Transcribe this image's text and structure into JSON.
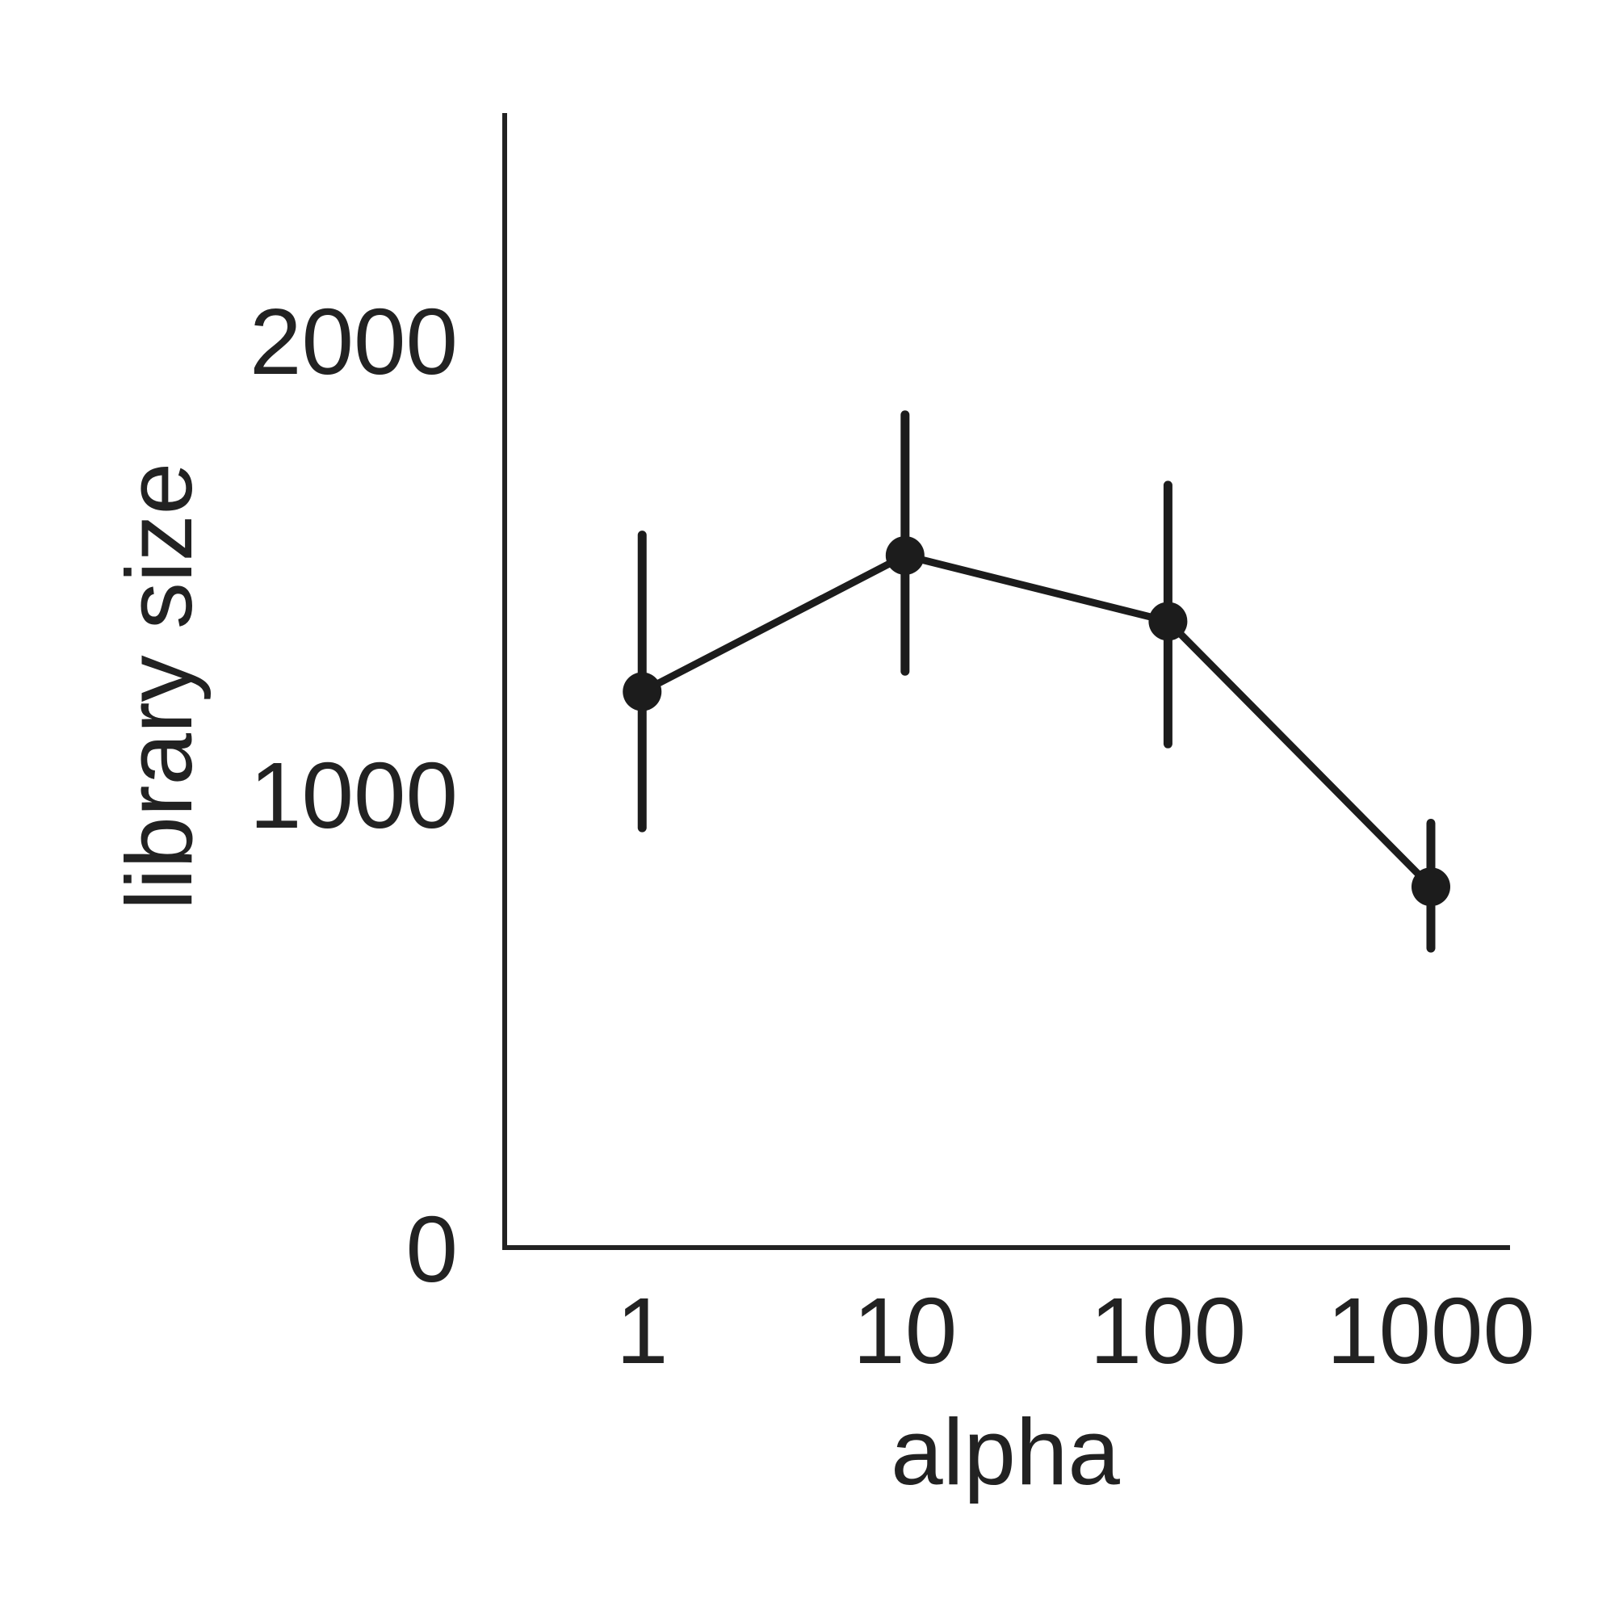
{
  "chart_data": {
    "type": "line",
    "title": "",
    "xlabel": "alpha",
    "ylabel": "library size",
    "x_scale": "log",
    "categories": [
      "1",
      "10",
      "100",
      "1000"
    ],
    "x": [
      1,
      10,
      100,
      1000
    ],
    "xlim": [
      0.3,
      2000
    ],
    "ylim": [
      0,
      2500
    ],
    "yticks": [
      0,
      1000,
      2000
    ],
    "ytick_labels": [
      "0",
      "1000",
      "2000"
    ],
    "series": [
      {
        "values": [
          1225,
          1525,
          1380,
          795
        ],
        "err_low": [
          925,
          1270,
          1110,
          660
        ],
        "err_high": [
          1570,
          1835,
          1680,
          935
        ]
      }
    ],
    "grid": false,
    "legend": "none",
    "colors": {
      "line": "#1c1c1c",
      "axis": "#222222",
      "text": "#222222"
    }
  }
}
